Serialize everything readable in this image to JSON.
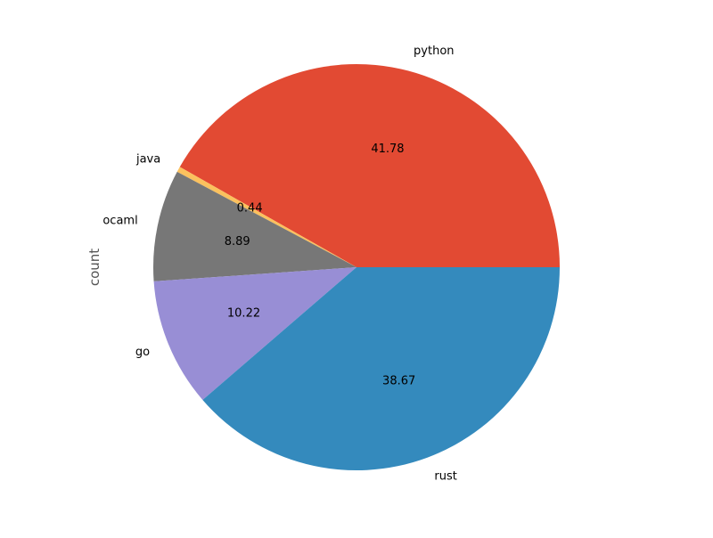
{
  "chart_data": {
    "type": "pie",
    "ylabel": "count",
    "categories": [
      "python",
      "java",
      "ocaml",
      "go",
      "rust"
    ],
    "values": [
      41.78,
      0.44,
      8.89,
      10.22,
      38.67
    ],
    "value_labels": [
      "41.78",
      "0.44",
      "8.89",
      "10.22",
      "38.67"
    ],
    "colors": [
      "#E24A33",
      "#FBC15E",
      "#777777",
      "#988ED5",
      "#348ABD"
    ],
    "start_angle_deg": 0,
    "direction": "counterclockwise",
    "legend": "none"
  }
}
